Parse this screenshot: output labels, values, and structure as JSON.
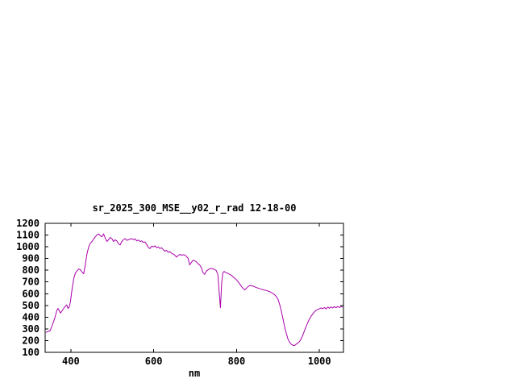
{
  "chart_data": {
    "type": "line",
    "title": "sr_2025_300_MSE__y02_r_rad 12-18-00",
    "xlabel": "nm",
    "ylabel": "",
    "xlim": [
      338,
      1058
    ],
    "ylim": [
      100,
      1200
    ],
    "xticks": [
      400,
      600,
      800,
      1000
    ],
    "yticks": [
      100,
      200,
      300,
      400,
      500,
      600,
      700,
      800,
      900,
      1000,
      1100,
      1200
    ],
    "grid": false,
    "legend": "none",
    "line_color": "#aa00aa",
    "axis_color": "#000000",
    "background_color": "#ffffff",
    "series": [
      {
        "points": [
          [
            340,
            270
          ],
          [
            345,
            278
          ],
          [
            350,
            285
          ],
          [
            354,
            320
          ],
          [
            358,
            360
          ],
          [
            362,
            400
          ],
          [
            366,
            455
          ],
          [
            369,
            475
          ],
          [
            372,
            455
          ],
          [
            375,
            435
          ],
          [
            378,
            450
          ],
          [
            381,
            465
          ],
          [
            384,
            480
          ],
          [
            387,
            495
          ],
          [
            390,
            505
          ],
          [
            393,
            475
          ],
          [
            396,
            485
          ],
          [
            399,
            530
          ],
          [
            403,
            640
          ],
          [
            407,
            730
          ],
          [
            411,
            775
          ],
          [
            415,
            795
          ],
          [
            419,
            810
          ],
          [
            423,
            805
          ],
          [
            427,
            785
          ],
          [
            431,
            770
          ],
          [
            435,
            845
          ],
          [
            439,
            940
          ],
          [
            443,
            1000
          ],
          [
            447,
            1030
          ],
          [
            451,
            1045
          ],
          [
            455,
            1065
          ],
          [
            459,
            1085
          ],
          [
            463,
            1100
          ],
          [
            467,
            1110
          ],
          [
            471,
            1095
          ],
          [
            475,
            1085
          ],
          [
            479,
            1110
          ],
          [
            483,
            1075
          ],
          [
            487,
            1045
          ],
          [
            491,
            1060
          ],
          [
            495,
            1080
          ],
          [
            499,
            1070
          ],
          [
            503,
            1045
          ],
          [
            507,
            1060
          ],
          [
            511,
            1050
          ],
          [
            515,
            1025
          ],
          [
            519,
            1015
          ],
          [
            523,
            1045
          ],
          [
            527,
            1060
          ],
          [
            531,
            1070
          ],
          [
            535,
            1055
          ],
          [
            539,
            1060
          ],
          [
            543,
            1065
          ],
          [
            547,
            1070
          ],
          [
            551,
            1060
          ],
          [
            555,
            1068
          ],
          [
            559,
            1050
          ],
          [
            563,
            1058
          ],
          [
            567,
            1045
          ],
          [
            571,
            1050
          ],
          [
            575,
            1038
          ],
          [
            579,
            1042
          ],
          [
            583,
            1020
          ],
          [
            587,
            995
          ],
          [
            591,
            985
          ],
          [
            595,
            1005
          ],
          [
            599,
            1000
          ],
          [
            603,
            1008
          ],
          [
            607,
            992
          ],
          [
            611,
            1000
          ],
          [
            615,
            985
          ],
          [
            619,
            992
          ],
          [
            623,
            975
          ],
          [
            627,
            962
          ],
          [
            631,
            970
          ],
          [
            635,
            952
          ],
          [
            639,
            960
          ],
          [
            643,
            945
          ],
          [
            647,
            938
          ],
          [
            651,
            930
          ],
          [
            655,
            912
          ],
          [
            659,
            925
          ],
          [
            663,
            935
          ],
          [
            667,
            928
          ],
          [
            671,
            932
          ],
          [
            675,
            930
          ],
          [
            679,
            918
          ],
          [
            683,
            902
          ],
          [
            687,
            845
          ],
          [
            691,
            868
          ],
          [
            695,
            885
          ],
          [
            699,
            880
          ],
          [
            703,
            872
          ],
          [
            707,
            855
          ],
          [
            711,
            845
          ],
          [
            715,
            822
          ],
          [
            719,
            780
          ],
          [
            723,
            765
          ],
          [
            727,
            792
          ],
          [
            731,
            803
          ],
          [
            735,
            812
          ],
          [
            739,
            815
          ],
          [
            743,
            812
          ],
          [
            747,
            806
          ],
          [
            751,
            798
          ],
          [
            755,
            760
          ],
          [
            758,
            620
          ],
          [
            761,
            480
          ],
          [
            764,
            690
          ],
          [
            767,
            780
          ],
          [
            770,
            790
          ],
          [
            773,
            782
          ],
          [
            776,
            778
          ],
          [
            780,
            772
          ],
          [
            784,
            764
          ],
          [
            788,
            755
          ],
          [
            792,
            742
          ],
          [
            796,
            730
          ],
          [
            800,
            718
          ],
          [
            804,
            700
          ],
          [
            808,
            682
          ],
          [
            812,
            660
          ],
          [
            816,
            645
          ],
          [
            820,
            632
          ],
          [
            824,
            648
          ],
          [
            828,
            662
          ],
          [
            832,
            670
          ],
          [
            836,
            668
          ],
          [
            840,
            664
          ],
          [
            844,
            658
          ],
          [
            848,
            652
          ],
          [
            852,
            648
          ],
          [
            856,
            642
          ],
          [
            860,
            638
          ],
          [
            864,
            634
          ],
          [
            868,
            630
          ],
          [
            872,
            628
          ],
          [
            876,
            622
          ],
          [
            880,
            618
          ],
          [
            884,
            610
          ],
          [
            888,
            602
          ],
          [
            892,
            590
          ],
          [
            896,
            575
          ],
          [
            900,
            552
          ],
          [
            904,
            508
          ],
          [
            908,
            452
          ],
          [
            912,
            385
          ],
          [
            916,
            318
          ],
          [
            920,
            262
          ],
          [
            924,
            215
          ],
          [
            928,
            185
          ],
          [
            932,
            168
          ],
          [
            936,
            160
          ],
          [
            940,
            158
          ],
          [
            944,
            170
          ],
          [
            948,
            180
          ],
          [
            952,
            192
          ],
          [
            956,
            215
          ],
          [
            960,
            248
          ],
          [
            964,
            285
          ],
          [
            968,
            322
          ],
          [
            972,
            355
          ],
          [
            976,
            385
          ],
          [
            980,
            408
          ],
          [
            984,
            428
          ],
          [
            988,
            445
          ],
          [
            992,
            458
          ],
          [
            996,
            466
          ],
          [
            1000,
            472
          ],
          [
            1004,
            478
          ],
          [
            1008,
            472
          ],
          [
            1012,
            482
          ],
          [
            1016,
            470
          ],
          [
            1020,
            486
          ],
          [
            1024,
            476
          ],
          [
            1028,
            488
          ],
          [
            1032,
            478
          ],
          [
            1036,
            490
          ],
          [
            1040,
            480
          ],
          [
            1044,
            492
          ],
          [
            1048,
            482
          ],
          [
            1052,
            490
          ],
          [
            1056,
            486
          ]
        ]
      }
    ]
  }
}
